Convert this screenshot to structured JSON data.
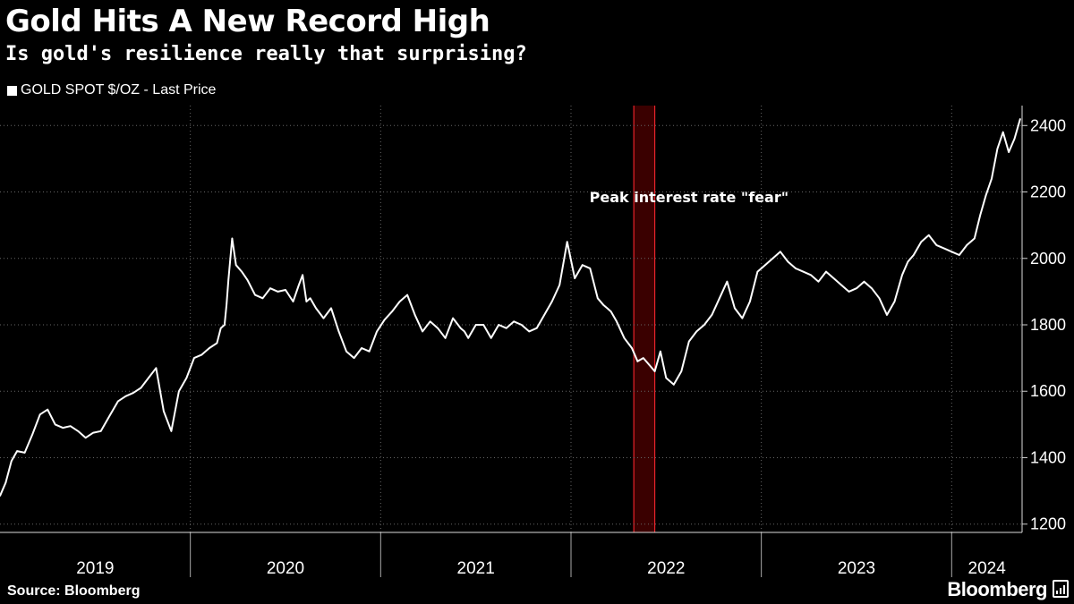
{
  "header": {
    "title": "Gold Hits A New Record High",
    "subtitle": "Is gold's resilience really that surprising?",
    "legend": "GOLD SPOT $/OZ - Last Price"
  },
  "footer": {
    "source": "Source: Bloomberg",
    "brand": "Bloomberg"
  },
  "colors": {
    "background": "#000000",
    "line": "#ffffff",
    "band_fill": "#3a0000",
    "band_edge": "#e8232a",
    "grid": "#666666"
  },
  "chart_data": {
    "type": "line",
    "title": "Gold Hits A New Record High",
    "subtitle": "Is gold's resilience really that surprising?",
    "xlabel": "",
    "ylabel": "",
    "ylim": [
      1175,
      2460
    ],
    "xlim": [
      2019.0,
      2024.37
    ],
    "yticks": [
      1200,
      1400,
      1600,
      1800,
      2000,
      2200,
      2400
    ],
    "year_labels": [
      "2019",
      "2020",
      "2021",
      "2022",
      "2023",
      "2024"
    ],
    "year_boundaries": [
      2020,
      2021,
      2022,
      2023,
      2024
    ],
    "grid": true,
    "legend_position": "top-left",
    "annotation": {
      "text": "Peak interest rate \"fear\"",
      "start": 2022.33,
      "end": 2022.44
    },
    "series": [
      {
        "name": "GOLD SPOT $/OZ - Last Price",
        "x": [
          2019.0,
          2019.03,
          2019.06,
          2019.09,
          2019.13,
          2019.17,
          2019.21,
          2019.25,
          2019.29,
          2019.33,
          2019.37,
          2019.41,
          2019.45,
          2019.49,
          2019.53,
          2019.57,
          2019.62,
          2019.66,
          2019.7,
          2019.74,
          2019.78,
          2019.82,
          2019.86,
          2019.9,
          2019.94,
          2019.98,
          2020.02,
          2020.06,
          2020.1,
          2020.14,
          2020.16,
          2020.18,
          2020.19,
          2020.2,
          2020.22,
          2020.24,
          2020.27,
          2020.3,
          2020.34,
          2020.38,
          2020.42,
          2020.46,
          2020.5,
          2020.54,
          2020.57,
          2020.59,
          2020.61,
          2020.63,
          2020.66,
          2020.7,
          2020.74,
          2020.78,
          2020.82,
          2020.86,
          2020.9,
          2020.94,
          2020.98,
          2021.02,
          2021.06,
          2021.1,
          2021.14,
          2021.18,
          2021.22,
          2021.26,
          2021.3,
          2021.34,
          2021.38,
          2021.42,
          2021.44,
          2021.46,
          2021.5,
          2021.54,
          2021.58,
          2021.62,
          2021.66,
          2021.7,
          2021.74,
          2021.78,
          2021.82,
          2021.86,
          2021.9,
          2021.94,
          2021.98,
          2022.02,
          2022.06,
          2022.1,
          2022.14,
          2022.17,
          2022.19,
          2022.21,
          2022.24,
          2022.28,
          2022.32,
          2022.35,
          2022.38,
          2022.41,
          2022.44,
          2022.47,
          2022.5,
          2022.54,
          2022.58,
          2022.62,
          2022.66,
          2022.7,
          2022.74,
          2022.78,
          2022.82,
          2022.86,
          2022.9,
          2022.94,
          2022.98,
          2023.02,
          2023.06,
          2023.1,
          2023.14,
          2023.18,
          2023.22,
          2023.26,
          2023.3,
          2023.34,
          2023.38,
          2023.42,
          2023.46,
          2023.5,
          2023.54,
          2023.58,
          2023.62,
          2023.66,
          2023.7,
          2023.74,
          2023.77,
          2023.8,
          2023.84,
          2023.88,
          2023.92,
          2023.96,
          2024.0,
          2024.04,
          2024.08,
          2024.12,
          2024.15,
          2024.18,
          2024.21,
          2024.24,
          2024.27,
          2024.3,
          2024.33,
          2024.36
        ],
        "values": [
          1285,
          1325,
          1390,
          1420,
          1415,
          1470,
          1530,
          1545,
          1500,
          1490,
          1495,
          1480,
          1460,
          1475,
          1480,
          1520,
          1570,
          1585,
          1595,
          1610,
          1640,
          1670,
          1540,
          1480,
          1600,
          1640,
          1700,
          1710,
          1730,
          1745,
          1790,
          1800,
          1860,
          1935,
          2060,
          1980,
          1960,
          1935,
          1890,
          1880,
          1910,
          1900,
          1905,
          1870,
          1920,
          1950,
          1870,
          1880,
          1850,
          1820,
          1850,
          1780,
          1720,
          1700,
          1730,
          1720,
          1780,
          1815,
          1840,
          1870,
          1890,
          1830,
          1780,
          1810,
          1790,
          1760,
          1820,
          1790,
          1780,
          1760,
          1800,
          1800,
          1760,
          1800,
          1790,
          1810,
          1800,
          1780,
          1790,
          1830,
          1870,
          1920,
          2050,
          1940,
          1980,
          1970,
          1880,
          1860,
          1850,
          1840,
          1810,
          1760,
          1730,
          1690,
          1700,
          1680,
          1660,
          1720,
          1640,
          1620,
          1660,
          1750,
          1780,
          1800,
          1830,
          1880,
          1930,
          1850,
          1820,
          1870,
          1960,
          1980,
          2000,
          2020,
          1990,
          1970,
          1960,
          1950,
          1930,
          1960,
          1940,
          1920,
          1900,
          1910,
          1930,
          1910,
          1880,
          1830,
          1870,
          1950,
          1990,
          2010,
          2050,
          2070,
          2040,
          2030,
          2020,
          2010,
          2040,
          2060,
          2130,
          2190,
          2240,
          2330,
          2380,
          2320,
          2360,
          2420
        ]
      }
    ]
  }
}
